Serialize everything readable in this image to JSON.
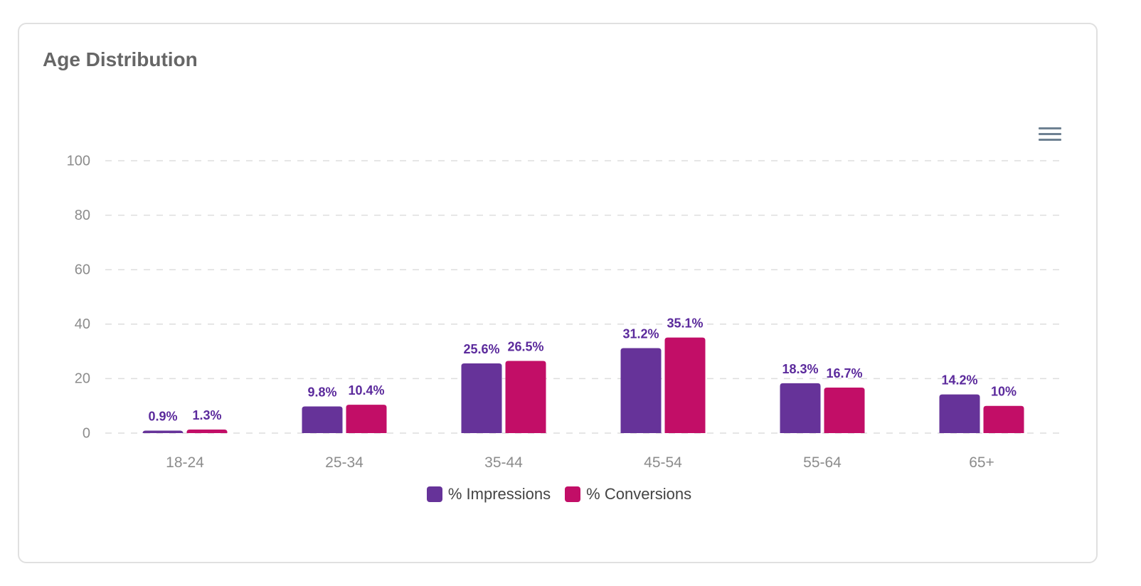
{
  "card": {
    "title": "Age Distribution"
  },
  "toolbar": {
    "menu_icon": "hamburger-menu-icon"
  },
  "colors": {
    "impressions": "#663399",
    "conversions": "#c20e67",
    "data_label": "#5b2a9c",
    "axis_text": "#8c8c8c",
    "grid": "#dedede"
  },
  "chart_data": {
    "type": "bar",
    "title": "Age Distribution",
    "xlabel": "",
    "ylabel": "",
    "categories": [
      "18-24",
      "25-34",
      "35-44",
      "45-54",
      "55-64",
      "65+"
    ],
    "series": [
      {
        "name": "% Impressions",
        "values": [
          0.9,
          9.8,
          25.6,
          31.2,
          18.3,
          14.2
        ],
        "labels": [
          "0.9%",
          "9.8%",
          "25.6%",
          "31.2%",
          "18.3%",
          "14.2%"
        ]
      },
      {
        "name": "% Conversions",
        "values": [
          1.3,
          10.4,
          26.5,
          35.1,
          16.7,
          10
        ],
        "labels": [
          "1.3%",
          "10.4%",
          "26.5%",
          "35.1%",
          "16.7%",
          "10%"
        ]
      }
    ],
    "ylim": [
      0,
      100
    ],
    "yticks": [
      "0",
      "20",
      "40",
      "60",
      "80",
      "100"
    ],
    "grid": true,
    "legend_position": "bottom"
  }
}
